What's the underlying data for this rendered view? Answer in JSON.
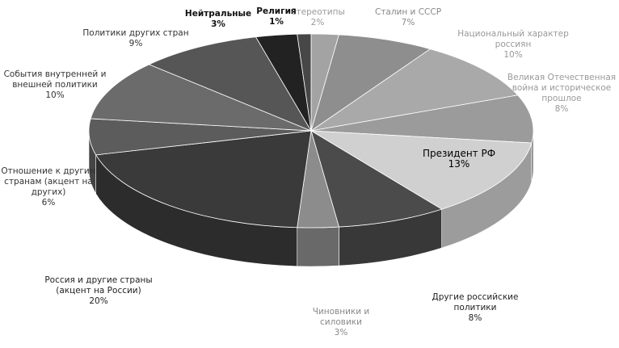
{
  "chart_data": {
    "type": "pie",
    "categories": [
      "Стереотипы",
      "Сталин и СССР",
      "Национальный характер россиян",
      "Великая Отечественная война и историческое прошлое",
      "Президент РФ",
      "Другие российские политики",
      "Чиновники и силовики",
      "Россия и другие страны (акцент на России)",
      "Отношение к другим странам (акцент на других)",
      "События внутренней и внешней политики",
      "Политики других стран",
      "Нейтральные",
      "Религия"
    ],
    "values": [
      2,
      7,
      10,
      8,
      13,
      8,
      3,
      20,
      6,
      10,
      9,
      3,
      1
    ],
    "value_labels": [
      "2%",
      "7%",
      "10%",
      "8%",
      "13%",
      "8%",
      "3%",
      "20%",
      "6%",
      "10%",
      "9%",
      "3%",
      "1%"
    ],
    "colors": [
      "#a3a3a3",
      "#8e8e8e",
      "#a9a9a9",
      "#9b9b9b",
      "#d0d0d0",
      "#4b4b4b",
      "#8c8c8c",
      "#3a3a3a",
      "#5c5c5c",
      "#6b6b6b",
      "#565656",
      "#222222",
      "#474747"
    ]
  }
}
